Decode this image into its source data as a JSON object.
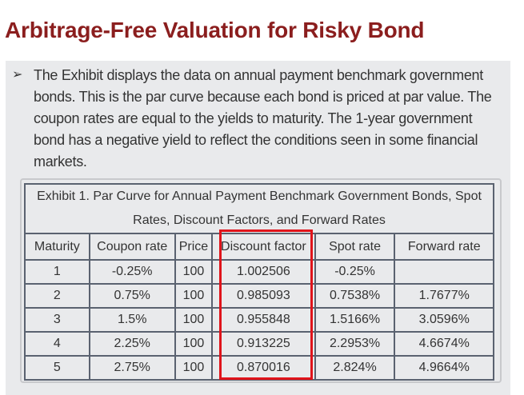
{
  "title": "Arbitrage-Free Valuation for Risky Bond",
  "bullet": "➢",
  "paragraph": "The Exhibit displays the data on annual payment benchmark government bonds. This is the par curve because each bond is priced at par value. The coupon rates are equal to the yields to maturity. The 1-year government bond has a negative yield to reflect the conditions seen in some financial markets.",
  "table": {
    "caption": "Exhibit 1. Par Curve for Annual Payment Benchmark Government Bonds, Spot Rates, Discount Factors, and Forward Rates",
    "headers": [
      "Maturity",
      "Coupon rate",
      "Price",
      "Discount factor",
      "Spot rate",
      "Forward rate"
    ],
    "rows": [
      [
        "1",
        "-0.25%",
        "100",
        "1.002506",
        "-0.25%",
        ""
      ],
      [
        "2",
        "0.75%",
        "100",
        "0.985093",
        "0.7538%",
        "1.7677%"
      ],
      [
        "3",
        "1.5%",
        "100",
        "0.955848",
        "1.5166%",
        "3.0596%"
      ],
      [
        "4",
        "2.25%",
        "100",
        "0.913225",
        "2.2953%",
        "4.6674%"
      ],
      [
        "5",
        "2.75%",
        "100",
        "0.870016",
        "2.824%",
        "4.9664%"
      ]
    ]
  },
  "colors": {
    "title": "#8b1e1e",
    "highlight": "#e0141b"
  }
}
